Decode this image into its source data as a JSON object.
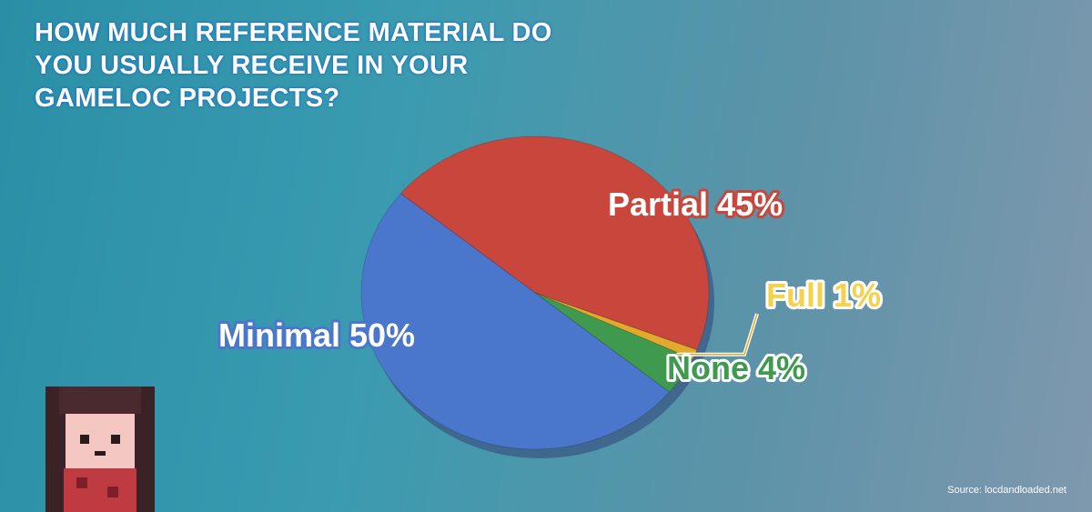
{
  "chart_data": {
    "type": "pie",
    "title": "HOW MUCH REFERENCE MATERIAL DO YOU USUALLY RECEIVE IN YOUR GAMELOC PROJECTS?",
    "categories": [
      "Partial",
      "Full",
      "None",
      "Minimal"
    ],
    "values": [
      45,
      1,
      4,
      50
    ],
    "value_labels": [
      "45%",
      "1%",
      "4%",
      "50%"
    ],
    "colors": [
      "#c8463c",
      "#e2aa2c",
      "#3f9a4f",
      "#4a77cb"
    ],
    "source": "Source: locdandloaded.net"
  }
}
